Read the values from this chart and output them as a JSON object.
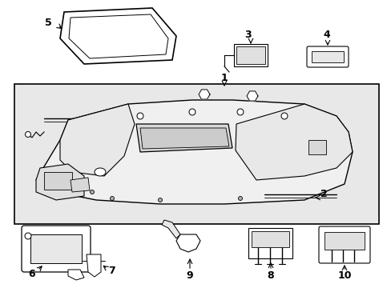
{
  "bg_color": "#ffffff",
  "box_bg": "#e8e8e8",
  "line_color": "#000000",
  "figsize": [
    4.89,
    3.6
  ],
  "dpi": 100,
  "label_fontsize": 9
}
